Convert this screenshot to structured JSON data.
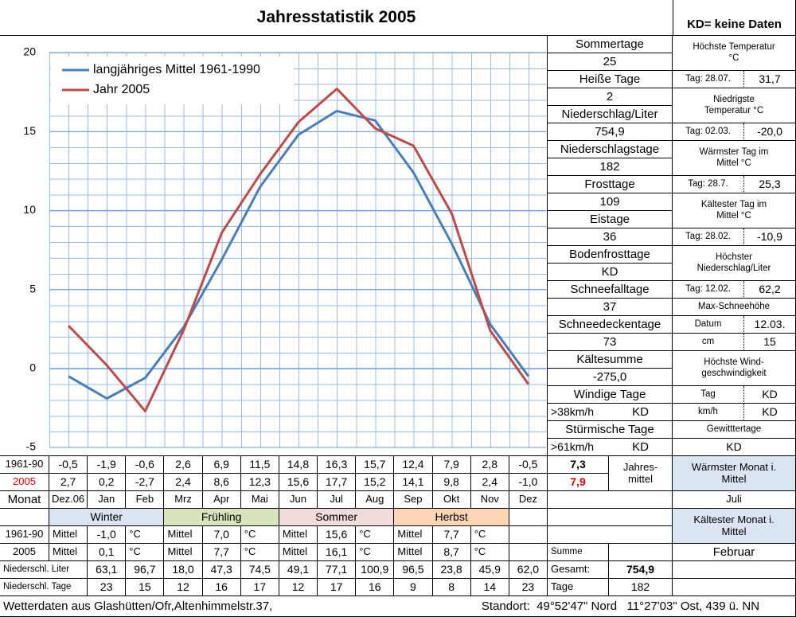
{
  "title": "Jahresstatistik 2005",
  "note": "KD= keine Daten",
  "chart_data": {
    "type": "line",
    "categories": [
      "Dez.06",
      "Jan",
      "Feb",
      "Mrz",
      "Apr",
      "Mai",
      "Jun",
      "Jul",
      "Aug",
      "Sep",
      "Okt",
      "Nov",
      "Dez"
    ],
    "series": [
      {
        "name": "langjähriges Mittel 1961-1990",
        "color": "#4a7ebb",
        "values": [
          -0.5,
          -1.9,
          -0.6,
          2.6,
          6.9,
          11.5,
          14.8,
          16.3,
          15.7,
          12.4,
          7.9,
          2.8,
          -0.5
        ],
        "value_labels": [
          "-0,5",
          "-1,9",
          "-0,6",
          "2,6",
          "6,9",
          "11,5",
          "14,8",
          "16,3",
          "15,7",
          "12,4",
          "7,9",
          "2,8",
          "-0,5"
        ]
      },
      {
        "name": "Jahr 2005",
        "color": "#be4b48",
        "values": [
          2.7,
          0.2,
          -2.7,
          2.4,
          8.6,
          12.3,
          15.6,
          17.7,
          15.2,
          14.1,
          9.8,
          2.4,
          -1.0
        ],
        "value_labels": [
          "2,7",
          "0,2",
          "-2,7",
          "2,4",
          "8,6",
          "12,3",
          "15,6",
          "17,7",
          "15,2",
          "14,1",
          "9,8",
          "2,4",
          "-1,0"
        ]
      }
    ],
    "ylim": [
      -5,
      20
    ],
    "yticks": [
      -5,
      0,
      5,
      10,
      15,
      20
    ],
    "grid": true,
    "legend": "upper left"
  },
  "row_labels": [
    "1961-90",
    "2005"
  ],
  "month_label": "Monat",
  "annual_mean": {
    "label": "Jahres-\nmittel",
    "values": [
      "7,3",
      "7,9"
    ]
  },
  "warmest_month": {
    "label": "Wärmster Monat i.\nMittel",
    "value": "Juli"
  },
  "coldest_month": {
    "label": "Kältester Monat i.\nMittel",
    "value": "Februar"
  },
  "seasons": {
    "mean_label": "Mittel",
    "unit": "°C",
    "items": [
      {
        "name": "Winter",
        "values": [
          "-1,0",
          "0,1"
        ]
      },
      {
        "name": "Frühling",
        "values": [
          "7,0",
          "7,7"
        ]
      },
      {
        "name": "Sommer",
        "values": [
          "15,6",
          "16,1"
        ]
      },
      {
        "name": "Herbst",
        "values": [
          "7,7",
          "8,7"
        ]
      }
    ]
  },
  "sum_label": "Summe",
  "precipitation": {
    "label": "Niederschl. Liter",
    "values": [
      "63,1",
      "96,7",
      "18,0",
      "47,3",
      "74,5",
      "49,1",
      "77,1",
      "100,9",
      "96,5",
      "23,8",
      "45,9",
      "62,0"
    ],
    "total_label": "Gesamt:",
    "total": "754,9"
  },
  "precipitation_days": {
    "label": "Niederschl. Tage",
    "values": [
      "23",
      "15",
      "12",
      "16",
      "17",
      "12",
      "17",
      "16",
      "9",
      "8",
      "14",
      "23"
    ],
    "total_label": "Tage",
    "total": "182"
  },
  "stats": [
    {
      "label": "Sommertage",
      "value": "25"
    },
    {
      "label": "Heiße Tage",
      "value": "2"
    },
    {
      "label": "Niederschlag/Liter",
      "value": "754,9"
    },
    {
      "label": "Niederschlagstage",
      "value": "182"
    },
    {
      "label": "Frosttage",
      "value": "109"
    },
    {
      "label": "Eistage",
      "value": "36"
    },
    {
      "label": "Bodenfrosttage",
      "value": "KD"
    },
    {
      "label": "Schneefalltage",
      "value": "37"
    },
    {
      "label": "Schneedeckentage",
      "value": "73"
    },
    {
      "label": "Kältesumme",
      "value": "-275,0"
    },
    {
      "label": "Windige Tage",
      "value": ">38km/h",
      "value2": "KD"
    },
    {
      "label": "Stürmische Tage",
      "value": ">61km/h",
      "value2": "KD"
    }
  ],
  "records": [
    {
      "label": "Höchste Temperatur\n°C",
      "day": "Tag: 28.07.",
      "value": "31,7"
    },
    {
      "label": "Niedrigste\nTemperatur °C",
      "day": "Tag: 02.03.",
      "value": "-20,0"
    },
    {
      "label": "Wärmster Tag im\nMittel °C",
      "day": "Tag: 28.7.",
      "value": "25,3"
    },
    {
      "label": "Kältester Tag im\nMittel °C",
      "day": "Tag: 28.02.",
      "value": "-10,9"
    },
    {
      "label": "Höchster\nNiederschlag/Liter",
      "day": "Tag: 12.02.",
      "value": "62,2"
    }
  ],
  "snow": {
    "label": "Max-Schneehöhe",
    "rows": [
      [
        "Datum",
        "12.03."
      ],
      [
        "cm",
        "15"
      ]
    ]
  },
  "wind": {
    "label": "Höchste Wind-\ngeschwindigkeit",
    "rows": [
      [
        "Tag",
        "KD"
      ],
      [
        "km/h",
        "KD"
      ]
    ]
  },
  "thunder": {
    "label": "Gewitttertage",
    "value": "KD"
  },
  "footer": {
    "source": "Wetterdaten aus Glashütten/Ofr,Altenhimmelstr.37,",
    "location": "Standort:  49°52'47\" Nord   11°27'03\" Ost, 439 ü. NN"
  }
}
